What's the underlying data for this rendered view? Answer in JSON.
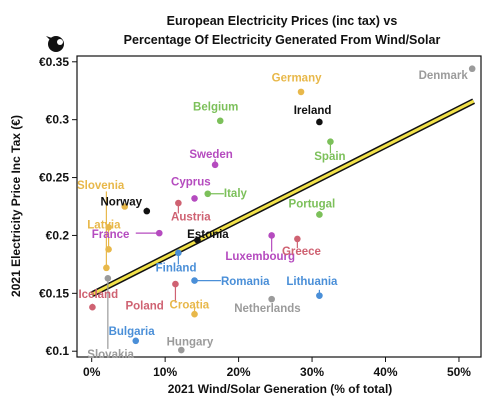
{
  "chart_data": {
    "type": "scatter",
    "title_line1": "European Electricity Prices (inc tax) vs",
    "title_line2": "Percentage Of Electricity Generated From Wind/Solar",
    "xlabel": "2021 Wind/Solar Generation (% of total)",
    "ylabel": "2021 Electricity Price Inc Tax (€)",
    "xlim": [
      -2,
      53
    ],
    "ylim": [
      0.095,
      0.355
    ],
    "x_ticks": [
      0,
      10,
      20,
      30,
      40,
      50
    ],
    "x_tick_labels": [
      "0%",
      "10%",
      "20%",
      "30%",
      "40%",
      "50%"
    ],
    "y_ticks": [
      0.1,
      0.15,
      0.2,
      0.25,
      0.3,
      0.35
    ],
    "y_tick_labels": [
      "€0.1",
      "€0.15",
      "€0.2",
      "€0.25",
      "€0.3",
      "€0.35"
    ],
    "trendline": {
      "x": [
        0,
        52
      ],
      "y": [
        0.149,
        0.316
      ],
      "color": "#f2e24a"
    },
    "grid": false,
    "points": [
      {
        "name": "Denmark",
        "x": 51.8,
        "y": 0.344,
        "color": "#9b9b9b"
      },
      {
        "name": "Germany",
        "x": 28.5,
        "y": 0.324,
        "color": "#e8b84a"
      },
      {
        "name": "Ireland",
        "x": 31.0,
        "y": 0.298,
        "color": "#111111"
      },
      {
        "name": "Belgium",
        "x": 17.5,
        "y": 0.299,
        "color": "#7cc05a"
      },
      {
        "name": "Spain",
        "x": 32.5,
        "y": 0.281,
        "color": "#7cc05a"
      },
      {
        "name": "Sweden",
        "x": 16.8,
        "y": 0.261,
        "color": "#b54bbf"
      },
      {
        "name": "Cyprus",
        "x": 14.0,
        "y": 0.232,
        "color": "#b54bbf"
      },
      {
        "name": "Italy",
        "x": 15.8,
        "y": 0.236,
        "color": "#7cc05a"
      },
      {
        "name": "Slovenia",
        "x": 4.5,
        "y": 0.225,
        "color": "#e8b84a"
      },
      {
        "name": "Norway",
        "x": 7.5,
        "y": 0.221,
        "color": "#111111"
      },
      {
        "name": "Austria",
        "x": 11.8,
        "y": 0.228,
        "color": "#cf6272"
      },
      {
        "name": "Portugal",
        "x": 31.0,
        "y": 0.218,
        "color": "#7cc05a"
      },
      {
        "name": "Latvia",
        "x": 2.3,
        "y": 0.207,
        "color": "#e8b84a"
      },
      {
        "name": "France",
        "x": 9.2,
        "y": 0.202,
        "color": "#b54bbf"
      },
      {
        "name": "Estonia",
        "x": 14.4,
        "y": 0.196,
        "color": "#111111"
      },
      {
        "name": "Luxembourg",
        "x": 24.5,
        "y": 0.2,
        "color": "#b54bbf"
      },
      {
        "name": "Greece",
        "x": 28.0,
        "y": 0.197,
        "color": "#cf6272"
      },
      {
        "name": "Finland",
        "x": 11.8,
        "y": 0.185,
        "color": "#4a8fd8"
      },
      {
        "name": "Latvia-pt2",
        "x": 2.3,
        "y": 0.188,
        "color": "#e8b84a"
      },
      {
        "name": "Slovenia-pt2",
        "x": 2.0,
        "y": 0.172,
        "color": "#e8b84a"
      },
      {
        "name": "Slovakia",
        "x": 2.2,
        "y": 0.163,
        "color": "#9b9b9b"
      },
      {
        "name": "Romania",
        "x": 14.0,
        "y": 0.161,
        "color": "#4a8fd8"
      },
      {
        "name": "Poland",
        "x": 11.4,
        "y": 0.158,
        "color": "#cf6272"
      },
      {
        "name": "Netherlands",
        "x": 24.5,
        "y": 0.145,
        "color": "#9b9b9b"
      },
      {
        "name": "Lithuania",
        "x": 31.0,
        "y": 0.148,
        "color": "#4a8fd8"
      },
      {
        "name": "Iceland",
        "x": 0.1,
        "y": 0.138,
        "color": "#cf6272"
      },
      {
        "name": "Croatia",
        "x": 14.0,
        "y": 0.132,
        "color": "#e8b84a"
      },
      {
        "name": "Bulgaria",
        "x": 6.0,
        "y": 0.109,
        "color": "#4a8fd8"
      },
      {
        "name": "Hungary",
        "x": 12.2,
        "y": 0.101,
        "color": "#9b9b9b"
      }
    ],
    "labels": [
      {
        "text": "Denmark",
        "color": "#9b9b9b",
        "x": 44.5,
        "y": 0.335
      },
      {
        "text": "Germany",
        "color": "#e8b84a",
        "x": 24.5,
        "y": 0.333
      },
      {
        "text": "Ireland",
        "color": "#111111",
        "x": 27.5,
        "y": 0.305
      },
      {
        "text": "Belgium",
        "color": "#7cc05a",
        "x": 13.8,
        "y": 0.308
      },
      {
        "text": "Spain",
        "color": "#7cc05a",
        "x": 30.3,
        "y": 0.265
      },
      {
        "text": "Sweden",
        "color": "#b54bbf",
        "x": 13.3,
        "y": 0.267
      },
      {
        "text": "Cyprus",
        "color": "#b54bbf",
        "x": 10.8,
        "y": 0.243
      },
      {
        "text": "Italy",
        "color": "#7cc05a",
        "x": 18.0,
        "y": 0.233
      },
      {
        "text": "Slovenia",
        "color": "#e8b84a",
        "x": -2.0,
        "y": 0.24
      },
      {
        "text": "Norway",
        "color": "#111111",
        "x": 1.2,
        "y": 0.226
      },
      {
        "text": "Austria",
        "color": "#cf6272",
        "x": 10.8,
        "y": 0.213
      },
      {
        "text": "Portugal",
        "color": "#7cc05a",
        "x": 26.8,
        "y": 0.224
      },
      {
        "text": "Latvia",
        "color": "#e8b84a",
        "x": -0.6,
        "y": 0.206
      },
      {
        "text": "France",
        "color": "#b54bbf",
        "x": 0.0,
        "y": 0.198
      },
      {
        "text": "Estonia",
        "color": "#111111",
        "x": 13.0,
        "y": 0.198
      },
      {
        "text": "Luxembourg",
        "color": "#b54bbf",
        "x": 18.2,
        "y": 0.179
      },
      {
        "text": "Greece",
        "color": "#cf6272",
        "x": 25.9,
        "y": 0.183
      },
      {
        "text": "Finland",
        "color": "#4a8fd8",
        "x": 8.7,
        "y": 0.169
      },
      {
        "text": "Romania",
        "color": "#4a8fd8",
        "x": 17.6,
        "y": 0.157
      },
      {
        "text": "Lithuania",
        "color": "#4a8fd8",
        "x": 26.5,
        "y": 0.157
      },
      {
        "text": "Iceland",
        "color": "#cf6272",
        "x": -1.8,
        "y": 0.146
      },
      {
        "text": "Poland",
        "color": "#cf6272",
        "x": 4.6,
        "y": 0.136
      },
      {
        "text": "Croatia",
        "color": "#e8b84a",
        "x": 10.6,
        "y": 0.137
      },
      {
        "text": "Netherlands",
        "color": "#9b9b9b",
        "x": 19.4,
        "y": 0.134
      },
      {
        "text": "Bulgaria",
        "color": "#4a8fd8",
        "x": 2.3,
        "y": 0.114
      },
      {
        "text": "Hungary",
        "color": "#9b9b9b",
        "x": 10.2,
        "y": 0.105
      },
      {
        "text": "Slovakia",
        "color": "#9b9b9b",
        "x": -0.6,
        "y": 0.094
      }
    ]
  }
}
